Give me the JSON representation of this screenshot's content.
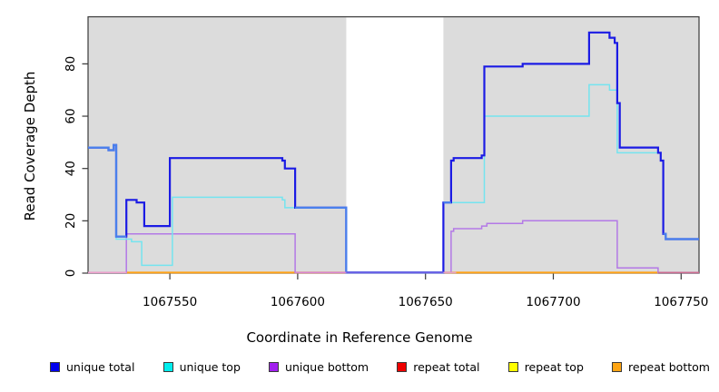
{
  "figure": {
    "xlabel": "Coordinate in Reference Genome",
    "ylabel": "Read Coverage Depth"
  },
  "chart_data": {
    "type": "line",
    "subtype": "step-coverage",
    "title": "",
    "xlabel": "Coordinate in Reference Genome",
    "ylabel": "Read Coverage Depth",
    "xlim": [
      1067518,
      1067757
    ],
    "ylim": [
      0,
      98
    ],
    "x_ticks": [
      1067550,
      1067600,
      1067650,
      1067700,
      1067750
    ],
    "x_tick_labels": [
      "1067550",
      "1067600",
      "1067650",
      "1067700",
      "1067750"
    ],
    "y_ticks": [
      0,
      20,
      40,
      60,
      80
    ],
    "y_tick_labels": [
      "0",
      "20",
      "40",
      "60",
      "80"
    ],
    "grid": false,
    "panel_bg": "#dcdcdc",
    "page_bg": "#ffffff",
    "masked_region": {
      "x0": 1067619,
      "x1": 1067657,
      "color": "#ffffff"
    },
    "legend_position": "bottom",
    "legend": [
      {
        "label": "unique total",
        "color": "#0000ee"
      },
      {
        "label": "unique top",
        "color": "#00eeee"
      },
      {
        "label": "unique bottom",
        "color": "#a21fef"
      },
      {
        "label": "repeat total",
        "color": "#ee0000"
      },
      {
        "label": "repeat top",
        "color": "#ffff00"
      },
      {
        "label": "repeat bottom",
        "color": "#ffa513"
      }
    ],
    "series": [
      {
        "name": "repeat total",
        "color": "#dd2222",
        "width": 1.2,
        "steps": [
          [
            1067518,
            0
          ]
        ],
        "x_end": 1067757
      },
      {
        "name": "repeat top",
        "color": "#f5e93c",
        "width": 1.2,
        "steps": [
          [
            1067518,
            0
          ]
        ],
        "x_end": 1067757
      },
      {
        "name": "repeat bottom",
        "color": "#ffa215",
        "width": 2,
        "steps": [
          [
            1067533,
            0
          ]
        ],
        "x_end": 1067741
      },
      {
        "name": "unique bottom",
        "color": "#b379e6",
        "width": 1.5,
        "steps": [
          [
            1067518,
            0
          ],
          [
            1067533,
            15
          ],
          [
            1067599,
            0
          ],
          [
            1067660,
            16
          ],
          [
            1067661,
            17
          ],
          [
            1067672,
            18
          ],
          [
            1067674,
            19
          ],
          [
            1067688,
            20
          ],
          [
            1067725,
            2
          ],
          [
            1067741,
            0
          ]
        ],
        "x_end": 1067757
      },
      {
        "name": "unique top",
        "color": "#74e4ef",
        "width": 1.5,
        "steps": [
          [
            1067518,
            48
          ],
          [
            1067526,
            47
          ],
          [
            1067528,
            49
          ],
          [
            1067529,
            13
          ],
          [
            1067535,
            12
          ],
          [
            1067539,
            3
          ],
          [
            1067551,
            29
          ],
          [
            1067594,
            28
          ],
          [
            1067595,
            25
          ],
          [
            1067619,
            0
          ],
          [
            1067657,
            27
          ],
          [
            1067673,
            60
          ],
          [
            1067714,
            72
          ],
          [
            1067722,
            70
          ],
          [
            1067725,
            46
          ],
          [
            1067742,
            43
          ],
          [
            1067743,
            15
          ],
          [
            1067744,
            13
          ]
        ],
        "x_end": 1067757
      },
      {
        "name": "unique total",
        "color": "#1b1be4",
        "width": 2.2,
        "steps": [
          [
            1067518,
            48
          ],
          [
            1067526,
            47
          ],
          [
            1067528,
            49
          ],
          [
            1067529,
            14
          ],
          [
            1067533,
            28
          ],
          [
            1067537,
            27
          ],
          [
            1067540,
            18
          ],
          [
            1067550,
            44
          ],
          [
            1067594,
            43
          ],
          [
            1067595,
            40
          ],
          [
            1067599,
            25
          ],
          [
            1067619,
            0
          ],
          [
            1067657,
            27
          ],
          [
            1067660,
            43
          ],
          [
            1067661,
            44
          ],
          [
            1067672,
            45
          ],
          [
            1067673,
            79
          ],
          [
            1067688,
            80
          ],
          [
            1067714,
            92
          ],
          [
            1067722,
            90
          ],
          [
            1067724,
            88
          ],
          [
            1067725,
            65
          ],
          [
            1067726,
            48
          ],
          [
            1067741,
            46
          ],
          [
            1067742,
            43
          ],
          [
            1067743,
            15
          ],
          [
            1067744,
            13
          ]
        ],
        "x_end": 1067757
      }
    ],
    "overlap_total_top": {
      "color": "#4a80ec",
      "width": 2.2,
      "segments": [
        {
          "steps": [
            [
              1067518,
              48
            ],
            [
              1067526,
              47
            ],
            [
              1067528,
              49
            ],
            [
              1067529,
              14
            ]
          ],
          "x_end": 1067533
        },
        {
          "steps": [
            [
              1067599,
              25
            ],
            [
              1067619,
              0
            ]
          ],
          "x_end": 1067657
        },
        {
          "steps": [
            [
              1067657,
              27
            ]
          ],
          "x_end": 1067660
        },
        {
          "steps": [
            [
              1067743,
              15
            ],
            [
              1067744,
              13
            ]
          ],
          "x_end": 1067757
        }
      ]
    },
    "baseline_segments": [
      {
        "x0": 1067518,
        "x1": 1067533,
        "color": "#f0a0cc",
        "width": 1.5
      },
      {
        "x0": 1067599,
        "x1": 1067619,
        "color": "#d983d0",
        "width": 1.5
      },
      {
        "x0": 1067619,
        "x1": 1067657,
        "color": "#6a5ce8",
        "width": 1.8
      },
      {
        "x0": 1067657,
        "x1": 1067662,
        "color": "#e8a0c0",
        "width": 1.5
      },
      {
        "x0": 1067741,
        "x1": 1067757,
        "color": "#cc6b8e",
        "width": 1.5
      }
    ]
  }
}
